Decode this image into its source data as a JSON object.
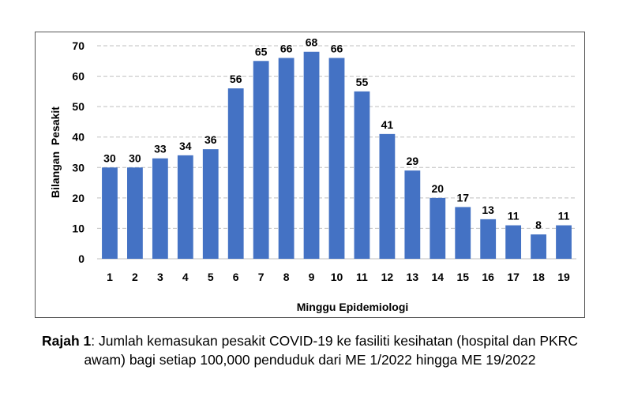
{
  "chart_data": {
    "type": "bar",
    "categories": [
      "1",
      "2",
      "3",
      "4",
      "5",
      "6",
      "7",
      "8",
      "9",
      "10",
      "11",
      "12",
      "13",
      "14",
      "15",
      "16",
      "17",
      "18",
      "19"
    ],
    "values": [
      30,
      30,
      33,
      34,
      36,
      56,
      65,
      66,
      68,
      66,
      55,
      41,
      29,
      20,
      17,
      13,
      11,
      8,
      11
    ],
    "xlabel": "Minggu Epidemiologi",
    "ylabel": "Bilangan  Pesakit",
    "ylim": [
      0,
      70
    ],
    "yticks": [
      0,
      10,
      20,
      30,
      40,
      50,
      60,
      70
    ],
    "grid": true,
    "bar_color": "#4472C4",
    "grid_color": "#BFBFBF"
  },
  "caption": {
    "label": "Rajah 1",
    "text": ": Jumlah kemasukan pesakit COVID-19 ke fasiliti kesihatan (hospital dan PKRC awam) bagi setiap 100,000 penduduk dari ME 1/2022 hingga ME 19/2022"
  }
}
